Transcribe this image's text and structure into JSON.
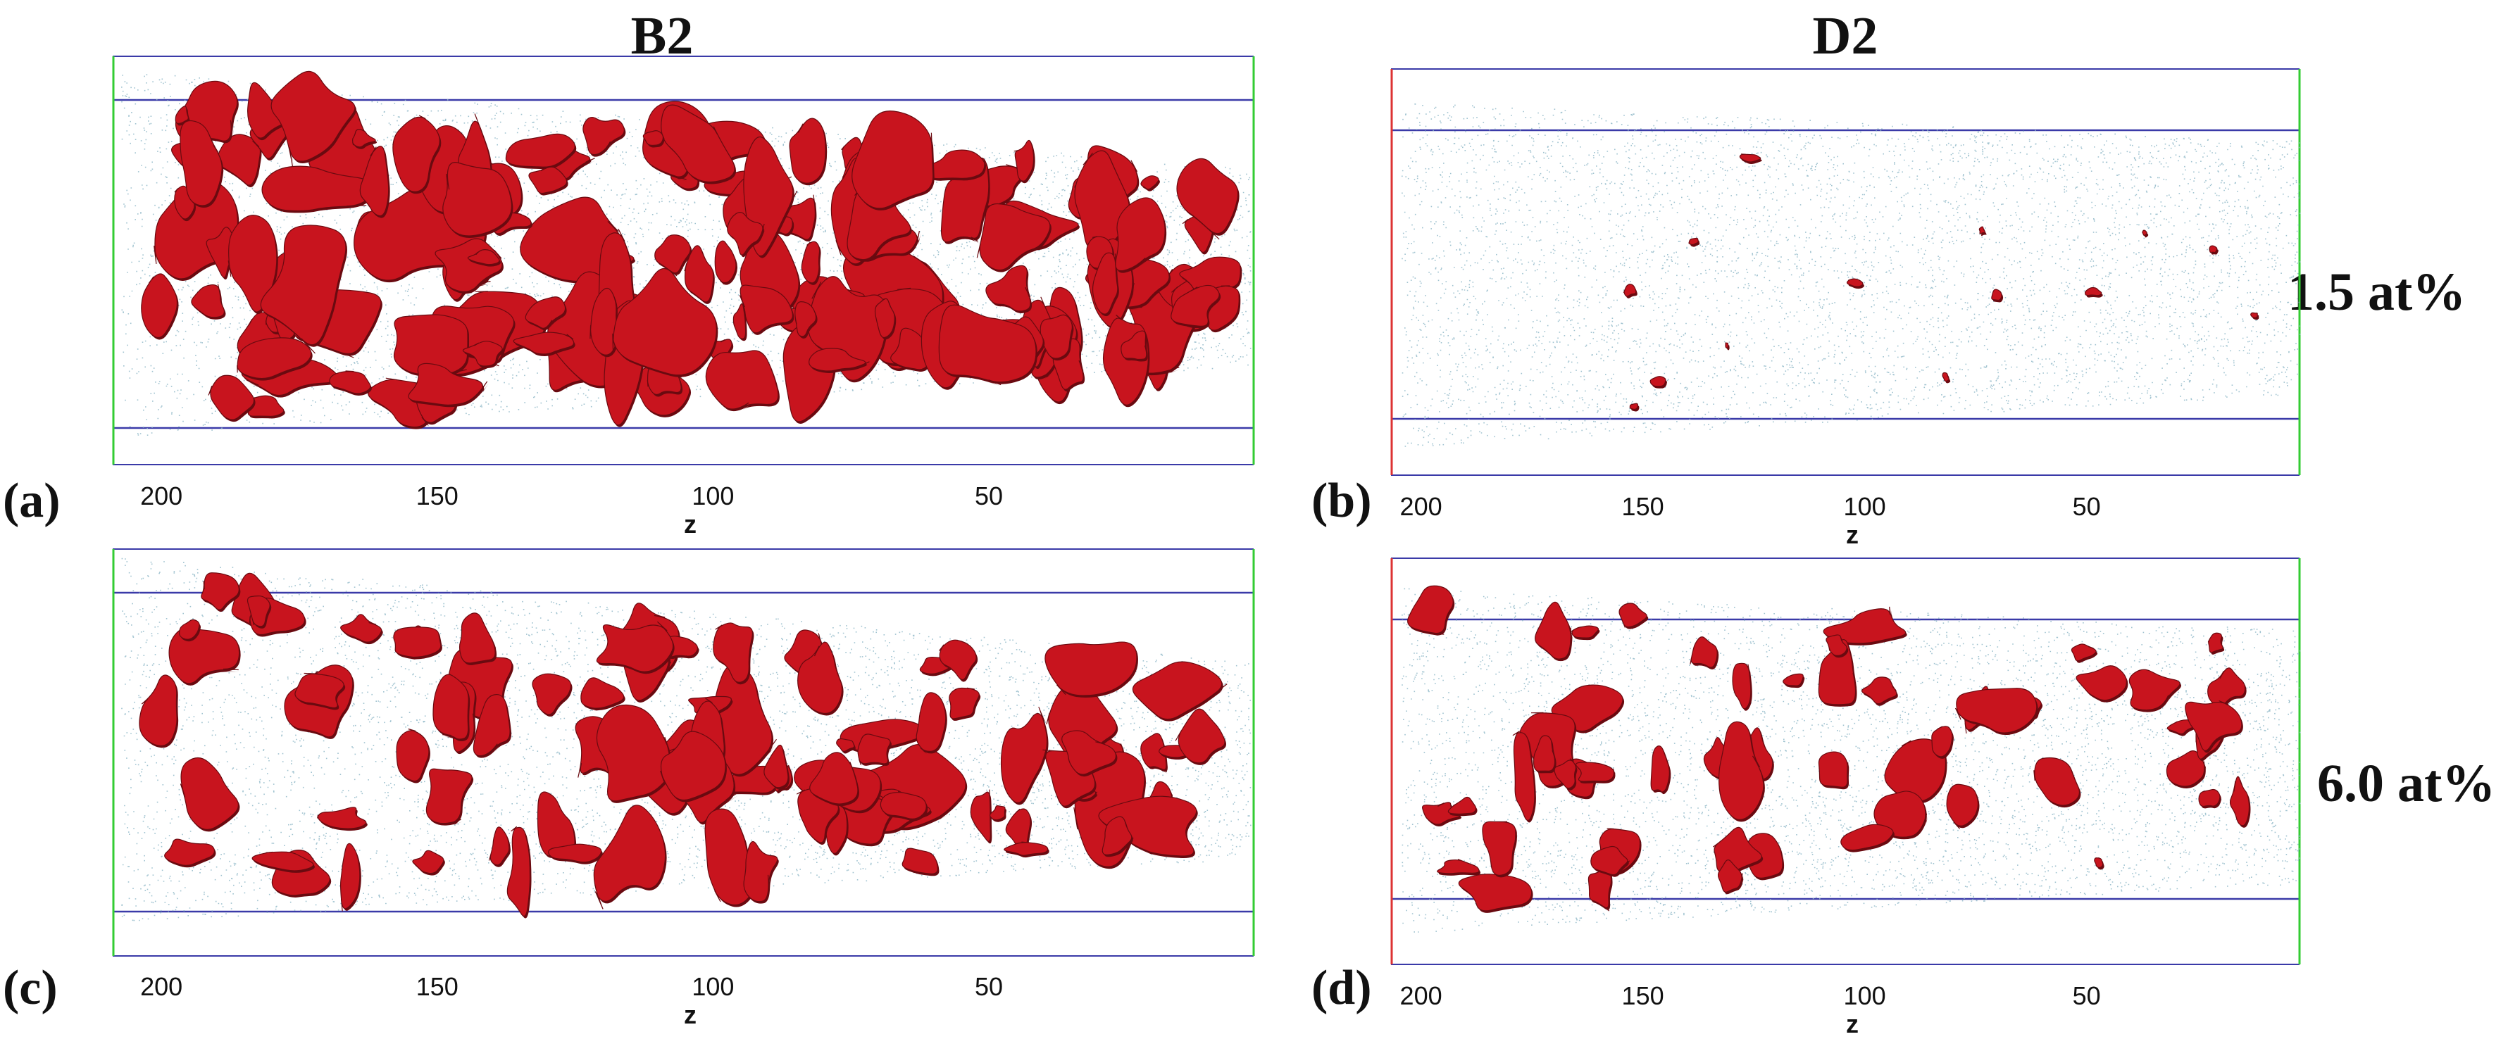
{
  "columns": {
    "left": "B2",
    "right": "D2"
  },
  "rows": {
    "top": "1.5 at%",
    "bottom": "6.0 at%"
  },
  "panels": [
    {
      "id": "a",
      "tag": "(a)",
      "phase": "B2",
      "concentration": "1.5 at%",
      "cluster_density": "high",
      "xlabel": "z",
      "ticks": [
        200,
        150,
        100,
        50
      ],
      "xlim": [
        205,
        2
      ]
    },
    {
      "id": "b",
      "tag": "(b)",
      "phase": "D2",
      "concentration": "1.5 at%",
      "cluster_density": "very low",
      "xlabel": "z",
      "ticks": [
        200,
        150,
        100,
        50
      ],
      "xlim": [
        202,
        2
      ]
    },
    {
      "id": "c",
      "tag": "(c)",
      "phase": "B2",
      "concentration": "6.0 at%",
      "cluster_density": "high",
      "xlabel": "z",
      "ticks": [
        200,
        150,
        100,
        50
      ],
      "xlim": [
        205,
        2
      ]
    },
    {
      "id": "d",
      "tag": "(d)",
      "phase": "D2",
      "concentration": "6.0 at%",
      "cluster_density": "medium",
      "xlabel": "z",
      "ticks": [
        200,
        150,
        100,
        50
      ],
      "xlim": [
        202,
        2
      ]
    }
  ],
  "colors": {
    "atoms": "#8fb8c8",
    "cluster": "#c8141e",
    "cluster_dark": "#6a0a10",
    "frame_line": "#3a3aa8",
    "side_green": "#33cc33",
    "side_red": "#dd3333"
  },
  "icons": {
    "atom_cloud": "scatter-dots",
    "precipitate": "red-isosurface-blob"
  }
}
